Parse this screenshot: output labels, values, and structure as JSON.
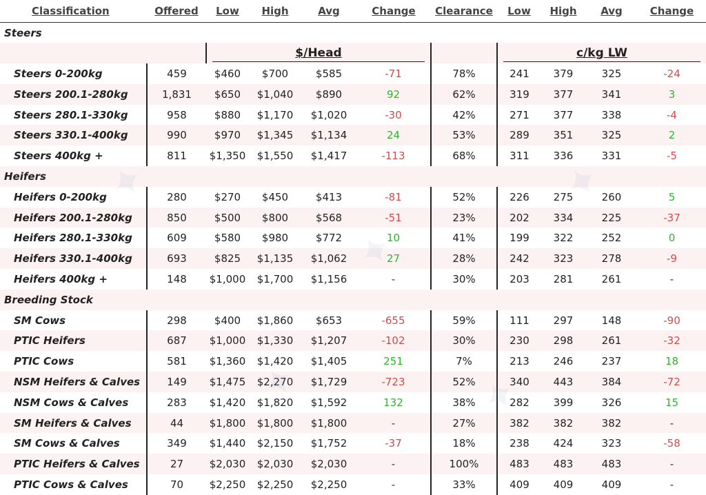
{
  "headers": [
    "Classification",
    "Offered",
    "Low",
    "High",
    "Avg",
    "Change",
    "Clearance",
    "Low",
    "High",
    "Avg",
    "Change"
  ],
  "subheaders": {
    "per_head": "$/Head",
    "per_kg": "c/kg LW"
  },
  "colors": {
    "negative": "#d24a4a",
    "positive": "#2db52d",
    "band": "#fdf2f2"
  },
  "sections": [
    {
      "title": "Steers",
      "rows": [
        {
          "label": "Steers 0-200kg",
          "offered": "459",
          "low": "$460",
          "high": "$700",
          "avg": "$585",
          "change": "-71",
          "clearance": "78%",
          "kg_low": "241",
          "kg_high": "379",
          "kg_avg": "325",
          "kg_change": "-24"
        },
        {
          "label": "Steers 200.1-280kg",
          "offered": "1,831",
          "low": "$650",
          "high": "$1,040",
          "avg": "$890",
          "change": "92",
          "clearance": "62%",
          "kg_low": "319",
          "kg_high": "377",
          "kg_avg": "341",
          "kg_change": "3"
        },
        {
          "label": "Steers 280.1-330kg",
          "offered": "958",
          "low": "$880",
          "high": "$1,170",
          "avg": "$1,020",
          "change": "-30",
          "clearance": "42%",
          "kg_low": "271",
          "kg_high": "377",
          "kg_avg": "338",
          "kg_change": "-4"
        },
        {
          "label": "Steers 330.1-400kg",
          "offered": "990",
          "low": "$970",
          "high": "$1,345",
          "avg": "$1,134",
          "change": "24",
          "clearance": "53%",
          "kg_low": "289",
          "kg_high": "351",
          "kg_avg": "325",
          "kg_change": "2"
        },
        {
          "label": "Steers 400kg +",
          "offered": "811",
          "low": "$1,350",
          "high": "$1,550",
          "avg": "$1,417",
          "change": "-113",
          "clearance": "68%",
          "kg_low": "311",
          "kg_high": "336",
          "kg_avg": "331",
          "kg_change": "-5"
        }
      ]
    },
    {
      "title": "Heifers",
      "rows": [
        {
          "label": "Heifers 0-200kg",
          "offered": "280",
          "low": "$270",
          "high": "$450",
          "avg": "$413",
          "change": "-81",
          "clearance": "52%",
          "kg_low": "226",
          "kg_high": "275",
          "kg_avg": "260",
          "kg_change": "5"
        },
        {
          "label": "Heifers 200.1-280kg",
          "offered": "850",
          "low": "$500",
          "high": "$800",
          "avg": "$568",
          "change": "-51",
          "clearance": "23%",
          "kg_low": "202",
          "kg_high": "334",
          "kg_avg": "225",
          "kg_change": "-37"
        },
        {
          "label": "Heifers 280.1-330kg",
          "offered": "609",
          "low": "$580",
          "high": "$980",
          "avg": "$772",
          "change": "10",
          "clearance": "41%",
          "kg_low": "199",
          "kg_high": "322",
          "kg_avg": "252",
          "kg_change": "0"
        },
        {
          "label": "Heifers 330.1-400kg",
          "offered": "693",
          "low": "$825",
          "high": "$1,135",
          "avg": "$1,062",
          "change": "27",
          "clearance": "28%",
          "kg_low": "242",
          "kg_high": "323",
          "kg_avg": "278",
          "kg_change": "-9"
        },
        {
          "label": "Heifers 400kg +",
          "offered": "148",
          "low": "$1,000",
          "high": "$1,700",
          "avg": "$1,156",
          "change": "-",
          "clearance": "30%",
          "kg_low": "203",
          "kg_high": "281",
          "kg_avg": "261",
          "kg_change": "-"
        }
      ]
    },
    {
      "title": "Breeding Stock",
      "rows": [
        {
          "label": "SM Cows",
          "offered": "298",
          "low": "$400",
          "high": "$1,860",
          "avg": "$653",
          "change": "-655",
          "clearance": "59%",
          "kg_low": "111",
          "kg_high": "297",
          "kg_avg": "148",
          "kg_change": "-90"
        },
        {
          "label": "PTIC Heifers",
          "offered": "687",
          "low": "$1,000",
          "high": "$1,330",
          "avg": "$1,207",
          "change": "-102",
          "clearance": "30%",
          "kg_low": "230",
          "kg_high": "298",
          "kg_avg": "261",
          "kg_change": "-32"
        },
        {
          "label": "PTIC Cows",
          "offered": "581",
          "low": "$1,360",
          "high": "$1,420",
          "avg": "$1,405",
          "change": "251",
          "clearance": "7%",
          "kg_low": "213",
          "kg_high": "246",
          "kg_avg": "237",
          "kg_change": "18"
        },
        {
          "label": "NSM Heifers & Calves",
          "offered": "149",
          "low": "$1,475",
          "high": "$2,270",
          "avg": "$1,729",
          "change": "-723",
          "clearance": "52%",
          "kg_low": "340",
          "kg_high": "443",
          "kg_avg": "384",
          "kg_change": "-72"
        },
        {
          "label": "NSM Cows & Calves",
          "offered": "283",
          "low": "$1,420",
          "high": "$1,820",
          "avg": "$1,592",
          "change": "132",
          "clearance": "38%",
          "kg_low": "282",
          "kg_high": "399",
          "kg_avg": "326",
          "kg_change": "15"
        },
        {
          "label": "SM Heifers & Calves",
          "offered": "44",
          "low": "$1,800",
          "high": "$1,800",
          "avg": "$1,800",
          "change": "-",
          "clearance": "27%",
          "kg_low": "382",
          "kg_high": "382",
          "kg_avg": "382",
          "kg_change": "-"
        },
        {
          "label": "SM Cows & Calves",
          "offered": "349",
          "low": "$1,440",
          "high": "$2,150",
          "avg": "$1,752",
          "change": "-37",
          "clearance": "18%",
          "kg_low": "238",
          "kg_high": "424",
          "kg_avg": "323",
          "kg_change": "-58"
        },
        {
          "label": "PTIC Heifers & Calves",
          "offered": "27",
          "low": "$2,030",
          "high": "$2,030",
          "avg": "$2,030",
          "change": "-",
          "clearance": "100%",
          "kg_low": "483",
          "kg_high": "483",
          "kg_avg": "483",
          "kg_change": "-"
        },
        {
          "label": "PTIC Cows & Calves",
          "offered": "70",
          "low": "$2,250",
          "high": "$2,250",
          "avg": "$2,250",
          "change": "-",
          "clearance": "33%",
          "kg_low": "409",
          "kg_high": "409",
          "kg_avg": "409",
          "kg_change": "-"
        }
      ]
    }
  ]
}
